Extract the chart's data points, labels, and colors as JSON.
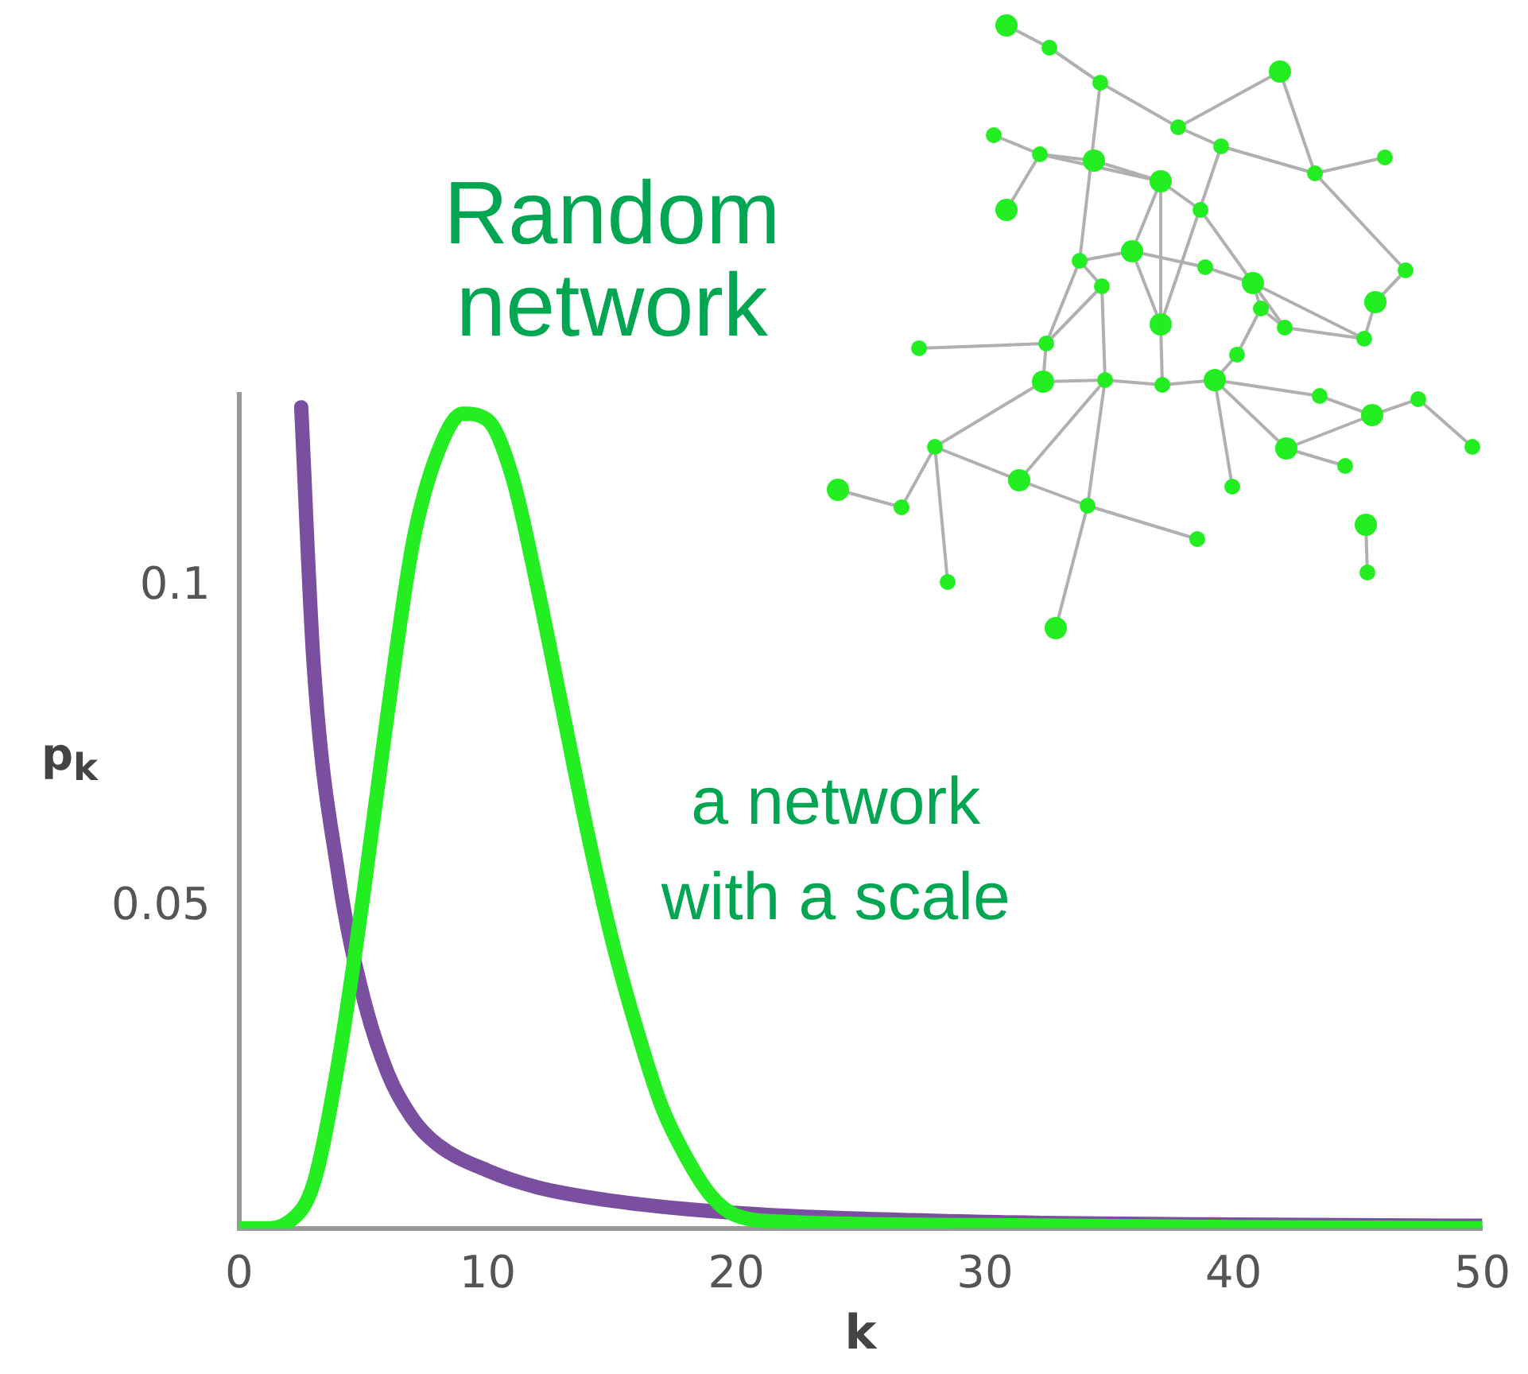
{
  "chart_data": {
    "type": "line",
    "xlabel": "k",
    "ylabel": "p$_{k}$",
    "xlim": [
      0,
      50
    ],
    "xticks": [
      0,
      10,
      20,
      30,
      40,
      50
    ],
    "ylim": [
      0,
      0.13
    ],
    "yticks": [
      0.05,
      0.1
    ],
    "grid": false,
    "legend": false,
    "marker": "none",
    "line_style": "solid",
    "annotations": [
      "Random network",
      "a network with a scale"
    ],
    "series": [
      {
        "color": "#7b4fa0",
        "x": [
          2.5,
          3,
          4,
          5,
          6,
          7,
          8,
          10,
          12,
          15,
          20,
          30,
          40,
          50
        ],
        "values": [
          0.128,
          0.088,
          0.055,
          0.036,
          0.024,
          0.017,
          0.013,
          0.009,
          0.0064,
          0.0043,
          0.0024,
          0.001,
          0.0006,
          0.0004
        ]
      },
      {
        "color": "#22ee22",
        "x": [
          0,
          1,
          2,
          3,
          4,
          5,
          6,
          7,
          8,
          9,
          10,
          11,
          12,
          13,
          14,
          15,
          16,
          17,
          18,
          19,
          20,
          22,
          30,
          40,
          50
        ],
        "values": [
          0,
          0,
          0.001,
          0.007,
          0.026,
          0.052,
          0.081,
          0.107,
          0.121,
          0.127,
          0.126,
          0.117,
          0.1,
          0.081,
          0.062,
          0.045,
          0.031,
          0.019,
          0.011,
          0.005,
          0.002,
          0.001,
          0.0005,
          0.0002,
          0
        ]
      }
    ]
  }
}
